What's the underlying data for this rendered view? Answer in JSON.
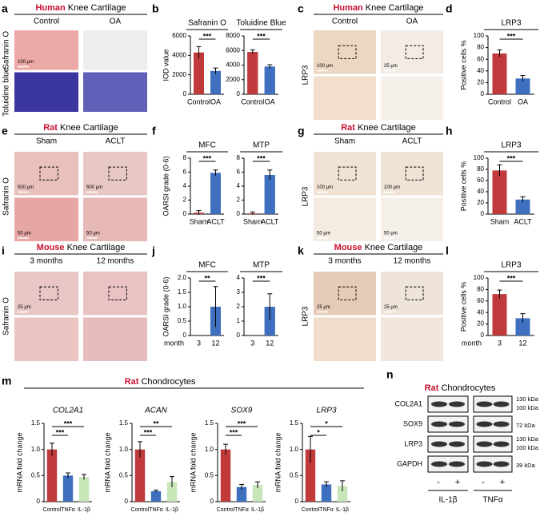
{
  "figure": {
    "letters": [
      "a",
      "b",
      "c",
      "d",
      "e",
      "f",
      "g",
      "h",
      "i",
      "j",
      "k",
      "l",
      "m",
      "n"
    ],
    "image_panels": [
      {
        "species": "Human",
        "title": "Knee Cartilage",
        "columns": [
          "Control",
          "OA"
        ],
        "stains": [
          "Safranin O",
          "Toluidine blue"
        ],
        "scales": [
          "100 μm"
        ]
      },
      {
        "species": "Human",
        "title": "Knee Cartilage",
        "columns": [
          "Control",
          "OA"
        ],
        "stains": [
          "LRP3"
        ],
        "scales": [
          "100 μm",
          "25 μm"
        ]
      },
      {
        "species": "Rat",
        "title": "Knee Cartilage",
        "columns": [
          "Sham",
          "ACLT"
        ],
        "stains": [
          "Safranin O"
        ],
        "scales": [
          "500 μm",
          "500 μm",
          "50 μm",
          "50 μm"
        ]
      },
      {
        "species": "Rat",
        "title": "Knee Cartilage",
        "columns": [
          "Sham",
          "ACLT"
        ],
        "stains": [
          "LRP3"
        ],
        "scales": [
          "100 μm",
          "100 μm",
          "50 μm",
          "50 μm"
        ]
      },
      {
        "species": "Mouse",
        "title": "Knee Cartilage",
        "columns": [
          "3 months",
          "12 months"
        ],
        "stains": [
          "Safranin O"
        ],
        "scales": [
          "25 μm"
        ]
      },
      {
        "species": "Mouse",
        "title": "Knee Cartilage",
        "columns": [
          "3 months",
          "12 months"
        ],
        "stains": [
          "LRP3"
        ],
        "scales": [
          "25 μm",
          "25 μm"
        ]
      }
    ],
    "pcr_title": {
      "species": "Rat",
      "title": "Chondrocytes"
    },
    "western_blot": {
      "species": "Rat",
      "title": "Chondrocytes",
      "proteins": [
        "COL2A1",
        "SOX9",
        "LRP3",
        "GAPDH"
      ],
      "markers": [
        "130 kDa",
        "100 kDa",
        "72 kDa",
        "130 kDa",
        "100 kDa",
        "39 kDa"
      ],
      "lanes": [
        "-",
        "+",
        "-",
        "+"
      ],
      "treatments": [
        "IL-1β",
        "TNFα"
      ]
    }
  },
  "chart_data": [
    {
      "type": "bar",
      "title": "Safranin O",
      "ylabel": "IOD value",
      "categories": [
        "Control",
        "OA"
      ],
      "values": [
        4300,
        2400
      ],
      "errors": [
        600,
        300
      ],
      "colors": [
        "#c0393b",
        "#3f6fbf"
      ],
      "ylim": [
        0,
        6000
      ],
      "yticks": [
        0,
        2000,
        4000,
        6000
      ],
      "significance": [
        {
          "label": "***",
          "between": [
            0,
            1
          ]
        }
      ]
    },
    {
      "type": "bar",
      "title": "Toluidine Blue",
      "categories": [
        "Control",
        "OA"
      ],
      "values": [
        5800,
        3800
      ],
      "errors": [
        300,
        250
      ],
      "colors": [
        "#c0393b",
        "#3f6fbf"
      ],
      "ylim": [
        0,
        8000
      ],
      "yticks": [
        0,
        2000,
        4000,
        6000,
        8000
      ],
      "significance": [
        {
          "label": "***",
          "between": [
            0,
            1
          ]
        }
      ]
    },
    {
      "type": "bar",
      "title": "LRP3",
      "ylabel": "Positive cells %",
      "categories": [
        "Control",
        "OA"
      ],
      "values": [
        70,
        27
      ],
      "errors": [
        6,
        5
      ],
      "colors": [
        "#c0393b",
        "#3f6fbf"
      ],
      "ylim": [
        0,
        100
      ],
      "yticks": [
        0,
        20,
        40,
        60,
        80,
        100
      ],
      "significance": [
        {
          "label": "***",
          "between": [
            0,
            1
          ]
        }
      ]
    },
    {
      "type": "bar",
      "title": "MFC",
      "ylabel": "OARSI grade (0-6)",
      "categories": [
        "Sham",
        "ACLT"
      ],
      "values": [
        0.2,
        5.9
      ],
      "errors": [
        0.3,
        0.4
      ],
      "colors": [
        "#c0393b",
        "#3f6fbf"
      ],
      "ylim": [
        0,
        8
      ],
      "yticks": [
        0,
        2,
        4,
        6,
        8
      ],
      "significance": [
        {
          "label": "***",
          "between": [
            0,
            1
          ]
        }
      ]
    },
    {
      "type": "bar",
      "title": "MTP",
      "categories": [
        "Sham",
        "ACLT"
      ],
      "values": [
        0.1,
        5.6
      ],
      "errors": [
        0.2,
        0.7
      ],
      "colors": [
        "#c0393b",
        "#3f6fbf"
      ],
      "ylim": [
        0,
        8
      ],
      "yticks": [
        0,
        2,
        4,
        6,
        8
      ],
      "significance": [
        {
          "label": "***",
          "between": [
            0,
            1
          ]
        }
      ]
    },
    {
      "type": "bar",
      "title": "LRP3",
      "ylabel": "Positive cells %",
      "categories": [
        "Sham",
        "ACLT"
      ],
      "values": [
        78,
        26
      ],
      "errors": [
        10,
        5
      ],
      "colors": [
        "#c0393b",
        "#3f6fbf"
      ],
      "ylim": [
        0,
        100
      ],
      "yticks": [
        0,
        20,
        40,
        60,
        80,
        100
      ],
      "significance": [
        {
          "label": "***",
          "between": [
            0,
            1
          ]
        }
      ]
    },
    {
      "type": "bar",
      "title": "MFC",
      "ylabel": "OARSI grade (0-6)",
      "xlabel": "month",
      "categories": [
        "3",
        "12"
      ],
      "values": [
        0,
        1.0
      ],
      "errors": [
        0,
        0.7
      ],
      "colors": [
        "#c0393b",
        "#3f6fbf"
      ],
      "ylim": [
        0,
        2
      ],
      "yticks": [
        0,
        0.5,
        {
          "value": 1,
          "label": "1.0"
        },
        1.5,
        {
          "value": 2,
          "label": "2.0"
        }
      ],
      "significance": [
        {
          "label": "**",
          "between": [
            0,
            1
          ]
        }
      ]
    },
    {
      "type": "bar",
      "title": "MTP",
      "categories": [
        "3",
        "12"
      ],
      "values": [
        0,
        2.0
      ],
      "errors": [
        0,
        0.9
      ],
      "colors": [
        "#c0393b",
        "#3f6fbf"
      ],
      "ylim": [
        0,
        4
      ],
      "yticks": [
        0,
        1,
        2,
        3,
        4
      ],
      "significance": [
        {
          "label": "***",
          "between": [
            0,
            1
          ]
        }
      ]
    },
    {
      "type": "bar",
      "title": "LRP3",
      "ylabel": "Positive cells %",
      "xlabel": "month",
      "categories": [
        "3",
        "12"
      ],
      "values": [
        72,
        30
      ],
      "errors": [
        7,
        8
      ],
      "colors": [
        "#c0393b",
        "#3f6fbf"
      ],
      "ylim": [
        0,
        100
      ],
      "yticks": [
        0,
        20,
        40,
        60,
        80,
        100
      ],
      "significance": [
        {
          "label": "***",
          "between": [
            0,
            1
          ]
        }
      ]
    },
    {
      "type": "bar",
      "title": "COL2A1",
      "ylabel": "mRNA fold change",
      "categories": [
        "Control",
        "TNFα",
        "IL-1β"
      ],
      "values": [
        1.0,
        0.5,
        0.47
      ],
      "errors": [
        0.12,
        0.05,
        0.05
      ],
      "colors": [
        "#c0393b",
        "#3f6fbf",
        "#c8e6b8"
      ],
      "ylim": [
        0,
        1.5
      ],
      "yticks": [
        0,
        0.5,
        {
          "value": 1,
          "label": "1.0"
        },
        1.5
      ],
      "significance": [
        {
          "label": "***",
          "between": [
            0,
            2
          ]
        },
        {
          "label": "***",
          "between": [
            0,
            1
          ]
        }
      ]
    },
    {
      "type": "bar",
      "title": "ACAN",
      "ylabel": "mRNA fold change",
      "categories": [
        "Control",
        "TNFα",
        "IL-1β"
      ],
      "values": [
        1.0,
        0.2,
        0.38
      ],
      "errors": [
        0.15,
        0.02,
        0.1
      ],
      "colors": [
        "#c0393b",
        "#3f6fbf",
        "#c8e6b8"
      ],
      "ylim": [
        0,
        1.5
      ],
      "yticks": [
        0,
        0.5,
        {
          "value": 1,
          "label": "1.0"
        },
        1.5
      ],
      "significance": [
        {
          "label": "**",
          "between": [
            0,
            2
          ]
        },
        {
          "label": "***",
          "between": [
            0,
            1
          ]
        }
      ]
    },
    {
      "type": "bar",
      "title": "SOX9",
      "ylabel": "mRNA fold change",
      "categories": [
        "Control",
        "TNFα",
        "IL-1β"
      ],
      "values": [
        1.0,
        0.28,
        0.32
      ],
      "errors": [
        0.1,
        0.05,
        0.06
      ],
      "colors": [
        "#c0393b",
        "#3f6fbf",
        "#c8e6b8"
      ],
      "ylim": [
        0,
        1.5
      ],
      "yticks": [
        0,
        0.5,
        {
          "value": 1,
          "label": "1.0"
        },
        1.5
      ],
      "significance": [
        {
          "label": "***",
          "between": [
            0,
            2
          ]
        },
        {
          "label": "***",
          "between": [
            0,
            1
          ]
        }
      ]
    },
    {
      "type": "bar",
      "title": "LRP3",
      "ylabel": "mRNA fold change",
      "categories": [
        "Control",
        "TNFα",
        "IL-1β"
      ],
      "values": [
        1.0,
        0.33,
        0.3
      ],
      "errors": [
        0.25,
        0.05,
        0.1
      ],
      "colors": [
        "#c0393b",
        "#3f6fbf",
        "#c8e6b8"
      ],
      "ylim": [
        0,
        1.5
      ],
      "yticks": [
        0,
        0.5,
        {
          "value": 1,
          "label": "1.0"
        },
        1.5
      ],
      "significance": [
        {
          "label": "*",
          "between": [
            0,
            2
          ]
        },
        {
          "label": "*",
          "between": [
            0,
            1
          ]
        }
      ]
    }
  ]
}
